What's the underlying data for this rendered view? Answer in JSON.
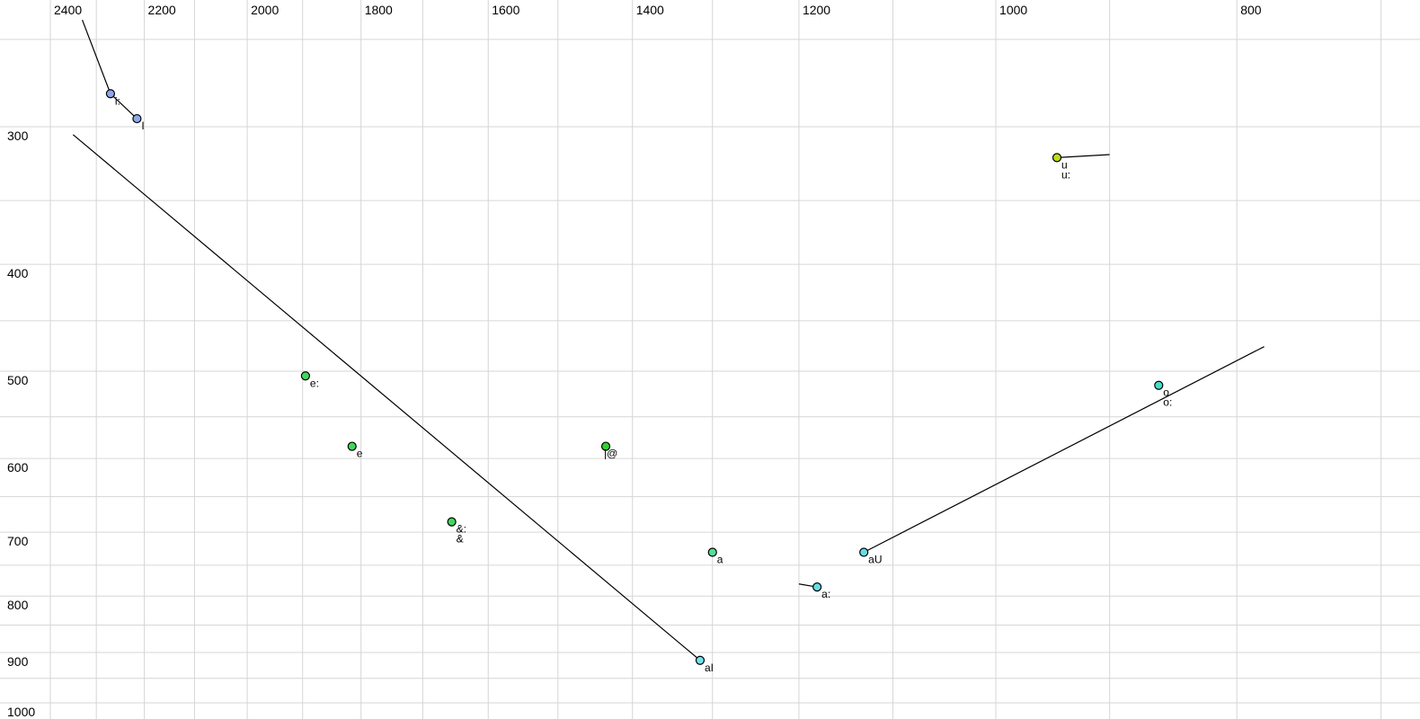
{
  "chart_data": {
    "type": "scatter",
    "title": "",
    "xlabel": "",
    "ylabel": "",
    "grid": true,
    "legend": false,
    "x_axis": {
      "scale": "log",
      "reversed": true,
      "side": "top",
      "labeled_ticks": [
        2400,
        2200,
        2000,
        1800,
        1600,
        1400,
        1200,
        1000,
        800
      ],
      "gridline_step": 100,
      "gridline_min": 700,
      "gridline_max": 2400
    },
    "y_axis": {
      "scale": "log",
      "increases_downward": true,
      "side": "left",
      "labeled_ticks": [
        300,
        400,
        500,
        600,
        700,
        800,
        900,
        1000
      ],
      "gridline_step": 50,
      "gridline_min": 250,
      "gridline_max": 1000
    },
    "points": [
      {
        "labels": [
          "i:"
        ],
        "f2": 2270,
        "f1": 280,
        "fill": "#8fa8ec"
      },
      {
        "labels": [
          "I"
        ],
        "f2": 2215,
        "f1": 295,
        "fill": "#8fa8ec"
      },
      {
        "labels": [
          "u",
          "u:"
        ],
        "f2": 945,
        "f1": 320,
        "fill": "#bfdc14"
      },
      {
        "labels": [
          "e:"
        ],
        "f2": 1895,
        "f1": 505,
        "fill": "#3fd95c"
      },
      {
        "labels": [
          "e"
        ],
        "f2": 1815,
        "f1": 585,
        "fill": "#3fd95c"
      },
      {
        "labels": [
          "&:",
          "&"
        ],
        "f2": 1655,
        "f1": 685,
        "fill": "#3fd95c"
      },
      {
        "labels": [
          "|@"
        ],
        "f2": 1435,
        "f1": 585,
        "fill": "#2ed32e",
        "label_offset": [
          -7,
          0
        ]
      },
      {
        "labels": [
          "o",
          "o:"
        ],
        "f2": 860,
        "f1": 515,
        "fill": "#43e0c8"
      },
      {
        "labels": [
          "a"
        ],
        "f2": 1300,
        "f1": 730,
        "fill": "#55dd9a"
      },
      {
        "labels": [
          "a:"
        ],
        "f2": 1180,
        "f1": 785,
        "fill": "#67dbe4"
      },
      {
        "labels": [
          "aU"
        ],
        "f2": 1130,
        "f1": 730,
        "fill": "#67dbe4"
      },
      {
        "labels": [
          "aI"
        ],
        "f2": 1315,
        "f1": 915,
        "fill": "#70e2ec"
      }
    ],
    "trajectories": [
      {
        "from": {
          "f2": 2330,
          "f1": 240
        },
        "to": {
          "f2": 2270,
          "f1": 280
        }
      },
      {
        "from": {
          "f2": 2270,
          "f1": 280
        },
        "to": {
          "f2": 2215,
          "f1": 295
        }
      },
      {
        "from": {
          "f2": 2350,
          "f1": 305
        },
        "to": {
          "f2": 1315,
          "f1": 915
        }
      },
      {
        "from": {
          "f2": 1130,
          "f1": 730
        },
        "to": {
          "f2": 780,
          "f1": 475
        }
      },
      {
        "from": {
          "f2": 1200,
          "f1": 780
        },
        "to": {
          "f2": 1180,
          "f1": 785
        }
      },
      {
        "from": {
          "f2": 945,
          "f1": 320
        },
        "to": {
          "f2": 900,
          "f1": 318
        }
      }
    ],
    "colors": {
      "background": "#ffffff",
      "gridline": "#d6d6d6",
      "trajectory": "#000000",
      "marker_outline": "#000000",
      "tick_text": "#000000",
      "point_label_text": "#000000"
    }
  }
}
